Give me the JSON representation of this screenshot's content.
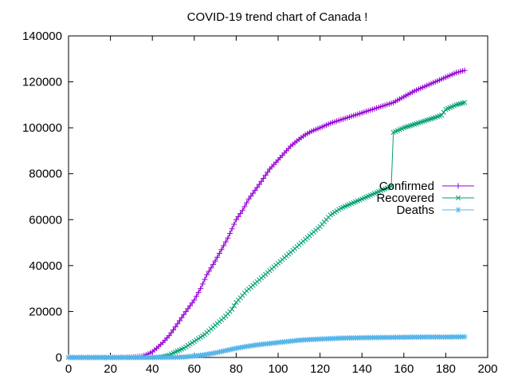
{
  "chart_data": {
    "type": "line",
    "title": "COVID-19 trend chart of Canada !",
    "xlabel": "",
    "ylabel": "",
    "xlim": [
      0,
      200
    ],
    "ylim": [
      0,
      140000
    ],
    "x_ticks": [
      0,
      20,
      40,
      60,
      80,
      100,
      120,
      140,
      160,
      180,
      200
    ],
    "y_ticks": [
      0,
      20000,
      40000,
      60000,
      80000,
      100000,
      120000,
      140000
    ],
    "grid": false,
    "legend_position": "right",
    "series": [
      {
        "name": "Confirmed",
        "color": "#9400d3",
        "marker": "plus",
        "points": [
          [
            0,
            0
          ],
          [
            10,
            0
          ],
          [
            20,
            0
          ],
          [
            30,
            100
          ],
          [
            35,
            500
          ],
          [
            38,
            1500
          ],
          [
            40,
            2500
          ],
          [
            42,
            4000
          ],
          [
            45,
            6500
          ],
          [
            48,
            9500
          ],
          [
            50,
            12000
          ],
          [
            53,
            16000
          ],
          [
            56,
            20000
          ],
          [
            60,
            25000
          ],
          [
            63,
            30000
          ],
          [
            66,
            36000
          ],
          [
            70,
            42000
          ],
          [
            73,
            47000
          ],
          [
            76,
            52000
          ],
          [
            80,
            60000
          ],
          [
            83,
            64000
          ],
          [
            86,
            69000
          ],
          [
            90,
            74000
          ],
          [
            93,
            78000
          ],
          [
            96,
            82000
          ],
          [
            100,
            86000
          ],
          [
            103,
            89000
          ],
          [
            106,
            92000
          ],
          [
            110,
            95000
          ],
          [
            113,
            97000
          ],
          [
            116,
            98500
          ],
          [
            120,
            100000
          ],
          [
            125,
            102000
          ],
          [
            130,
            103500
          ],
          [
            135,
            105000
          ],
          [
            140,
            106500
          ],
          [
            145,
            108000
          ],
          [
            150,
            109500
          ],
          [
            155,
            111000
          ],
          [
            160,
            113500
          ],
          [
            165,
            116000
          ],
          [
            170,
            118000
          ],
          [
            175,
            120000
          ],
          [
            180,
            122000
          ],
          [
            185,
            124000
          ],
          [
            189,
            125000
          ]
        ]
      },
      {
        "name": "Recovered",
        "color": "#009e73",
        "marker": "x",
        "points": [
          [
            0,
            0
          ],
          [
            20,
            0
          ],
          [
            40,
            0
          ],
          [
            45,
            300
          ],
          [
            48,
            1000
          ],
          [
            50,
            2000
          ],
          [
            55,
            4000
          ],
          [
            60,
            7000
          ],
          [
            65,
            10000
          ],
          [
            70,
            14000
          ],
          [
            75,
            18000
          ],
          [
            78,
            21000
          ],
          [
            80,
            24000
          ],
          [
            85,
            29000
          ],
          [
            90,
            33000
          ],
          [
            95,
            37000
          ],
          [
            100,
            41000
          ],
          [
            105,
            45000
          ],
          [
            110,
            49000
          ],
          [
            115,
            53000
          ],
          [
            120,
            57000
          ],
          [
            125,
            62000
          ],
          [
            130,
            65000
          ],
          [
            135,
            67000
          ],
          [
            140,
            69000
          ],
          [
            145,
            71000
          ],
          [
            150,
            73000
          ],
          [
            154,
            74500
          ],
          [
            155,
            98000
          ],
          [
            160,
            100000
          ],
          [
            165,
            101500
          ],
          [
            170,
            103000
          ],
          [
            175,
            104500
          ],
          [
            178,
            105500
          ],
          [
            180,
            108000
          ],
          [
            185,
            110000
          ],
          [
            189,
            111000
          ]
        ]
      },
      {
        "name": "Deaths",
        "color": "#56b4e9",
        "marker": "star",
        "points": [
          [
            0,
            0
          ],
          [
            20,
            0
          ],
          [
            40,
            0
          ],
          [
            50,
            50
          ],
          [
            55,
            200
          ],
          [
            60,
            600
          ],
          [
            65,
            1200
          ],
          [
            70,
            2000
          ],
          [
            75,
            3000
          ],
          [
            80,
            4000
          ],
          [
            85,
            4800
          ],
          [
            90,
            5500
          ],
          [
            95,
            6000
          ],
          [
            100,
            6500
          ],
          [
            105,
            7000
          ],
          [
            110,
            7500
          ],
          [
            115,
            7800
          ],
          [
            120,
            8000
          ],
          [
            130,
            8400
          ],
          [
            140,
            8600
          ],
          [
            150,
            8700
          ],
          [
            160,
            8800
          ],
          [
            170,
            8900
          ],
          [
            180,
            8900
          ],
          [
            189,
            9000
          ]
        ]
      }
    ]
  }
}
